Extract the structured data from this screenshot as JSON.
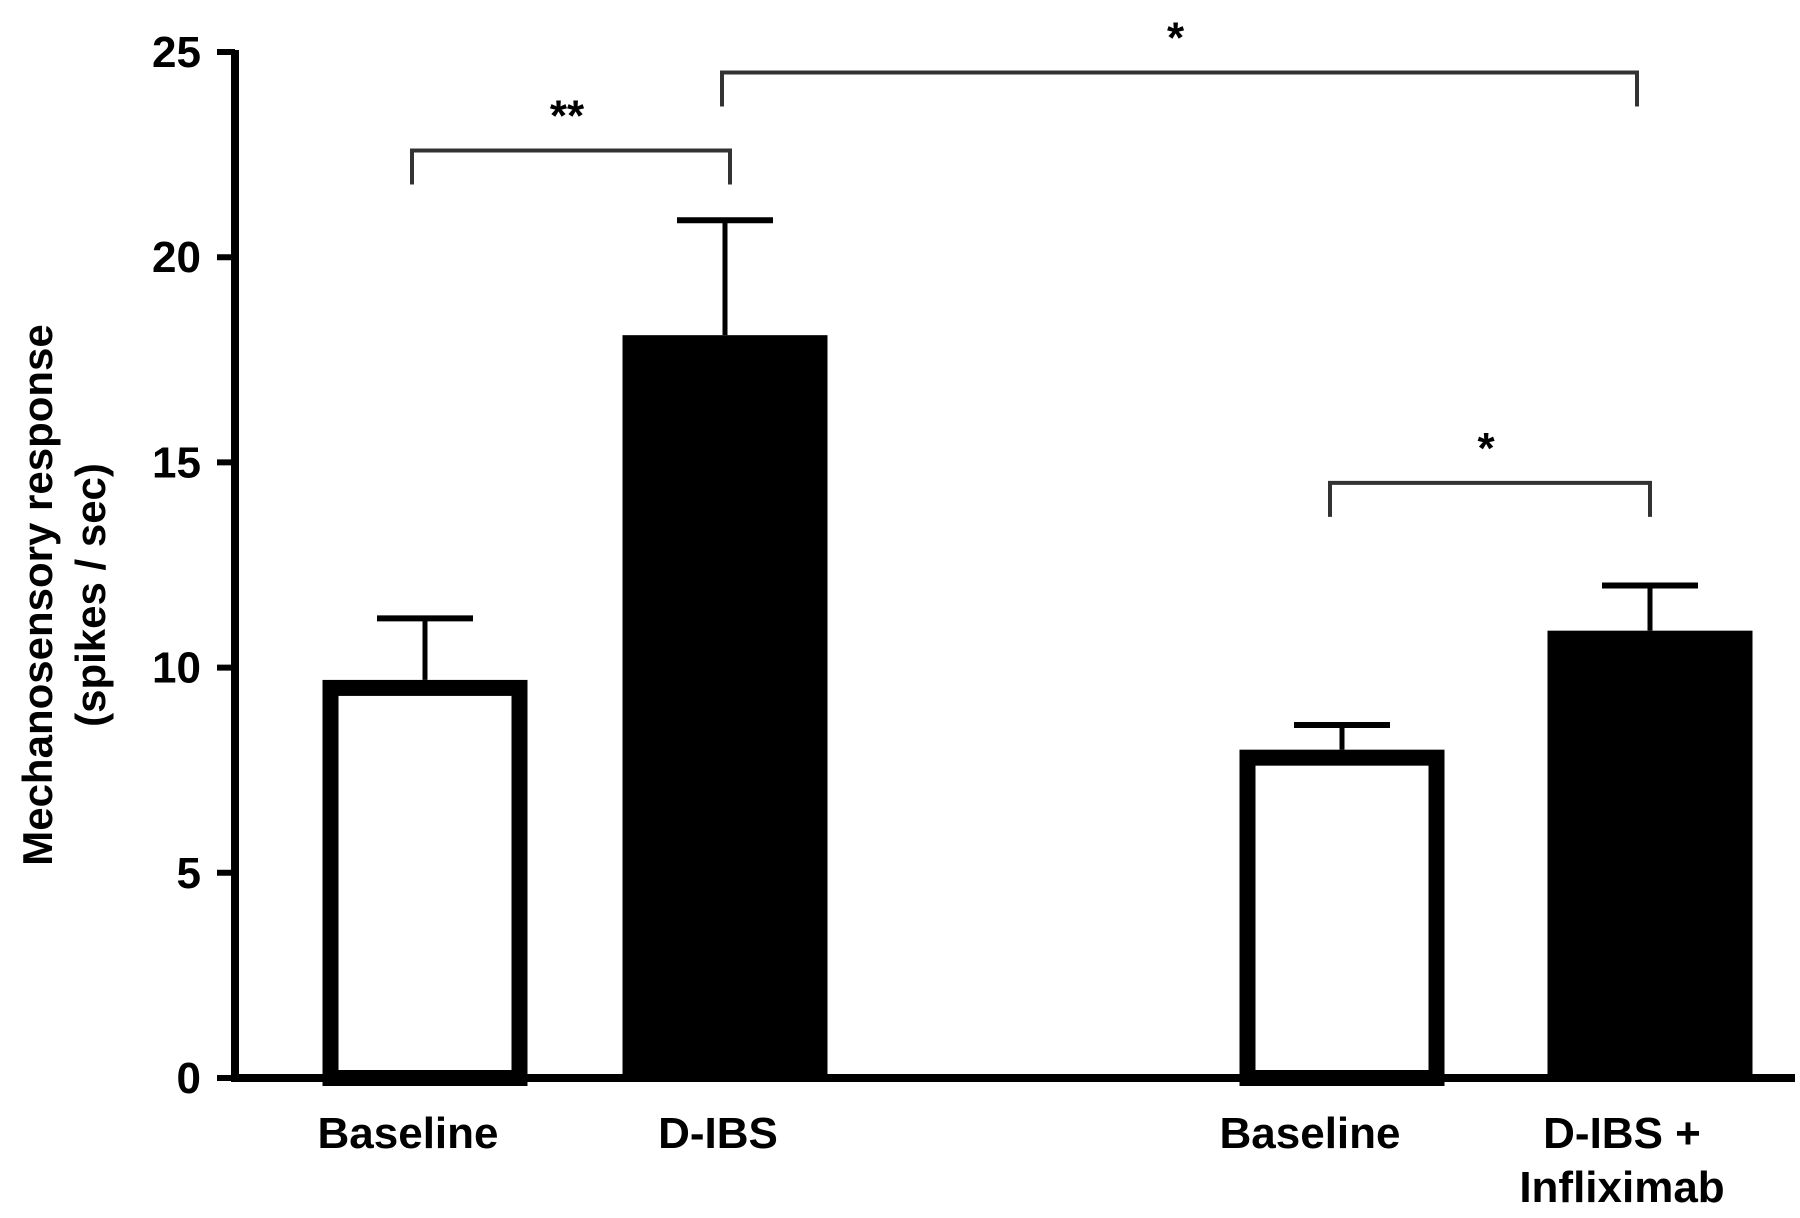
{
  "chart_data": {
    "type": "bar",
    "title": "",
    "xlabel": "",
    "ylabel_lines": [
      "Mechanosensory response",
      "(spikes / sec)"
    ],
    "ylim": [
      0,
      25
    ],
    "yticks": [
      0,
      5,
      10,
      15,
      20,
      25
    ],
    "categories": [
      {
        "lines": [
          "Baseline"
        ]
      },
      {
        "lines": [
          "D-IBS"
        ]
      },
      {
        "lines": [
          "Baseline"
        ]
      },
      {
        "lines": [
          "D-IBS +",
          "Infliximab"
        ]
      }
    ],
    "values": [
      9.7,
      18.1,
      8.0,
      10.9
    ],
    "errors": [
      1.5,
      2.8,
      0.6,
      1.1
    ],
    "bar_colors": [
      "#ffffff",
      "#000000",
      "#ffffff",
      "#000000"
    ],
    "grid": false,
    "legend": "none",
    "significance": [
      {
        "from": 0,
        "to": 1,
        "y": 22.6,
        "label": "**"
      },
      {
        "from": 1,
        "to": 3,
        "y": 24.5,
        "label": "*"
      },
      {
        "from": 2,
        "to": 3,
        "y": 14.5,
        "label": "*"
      }
    ]
  }
}
